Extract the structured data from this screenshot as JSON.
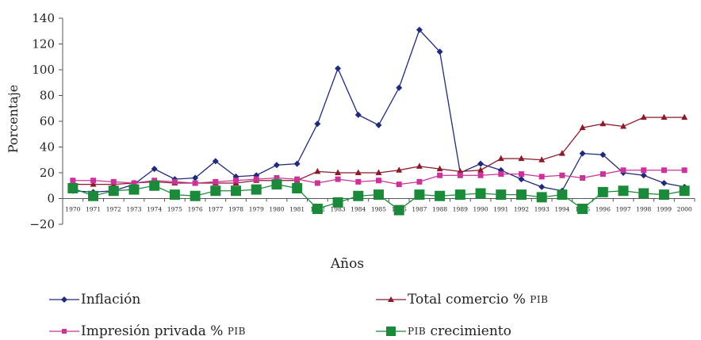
{
  "chart_data": {
    "type": "line",
    "xlabel": "Años",
    "ylabel": "Porcentaje",
    "ylim": [
      -20,
      140
    ],
    "yticks": [
      -20,
      0,
      20,
      40,
      60,
      80,
      100,
      120,
      140
    ],
    "ytick_labels": [
      "−20",
      "0",
      "20",
      "40",
      "60",
      "80",
      "100",
      "120",
      "140"
    ],
    "categories": [
      "1970",
      "1971",
      "1972",
      "1973",
      "1974",
      "1975",
      "1976",
      "1977",
      "1978",
      "1979",
      "1980",
      "1981",
      "1982",
      "1983",
      "1984",
      "1985",
      "1986",
      "1987",
      "1988",
      "1989",
      "1990",
      "1991",
      "1992",
      "1993",
      "1994",
      "1995",
      "1996",
      "1997",
      "1998",
      "1999",
      "2000"
    ],
    "series": [
      {
        "name": "Inflación",
        "color": "#1f2a7a",
        "marker": "diamond",
        "values": [
          6,
          5,
          6,
          11,
          23,
          15,
          16,
          29,
          17,
          18,
          26,
          27,
          58,
          101,
          65,
          57,
          86,
          131,
          114,
          20,
          27,
          22,
          15,
          9,
          6,
          35,
          34,
          20,
          18,
          12,
          9
        ]
      },
      {
        "name": "Total comercio % PIB",
        "color": "#8b1a2b",
        "marker": "triangle",
        "values": [
          11,
          11,
          11,
          12,
          13,
          12,
          12,
          12,
          12,
          14,
          14,
          14,
          21,
          20,
          20,
          20,
          22,
          25,
          23,
          21,
          22,
          31,
          31,
          30,
          35,
          55,
          58,
          56,
          63,
          63,
          63
        ]
      },
      {
        "name": "Impresión privada % PIB",
        "color": "#cc3399",
        "marker": "square",
        "values": [
          14,
          14,
          13,
          12,
          14,
          13,
          12,
          13,
          14,
          15,
          16,
          15,
          12,
          15,
          13,
          14,
          11,
          13,
          18,
          18,
          18,
          19,
          19,
          17,
          18,
          16,
          19,
          22,
          22,
          22,
          22
        ]
      },
      {
        "name": "PIB crecimiento",
        "color": "#1a8a3a",
        "marker": "bigsquare",
        "values": [
          8,
          2,
          6,
          7,
          10,
          3,
          2,
          6,
          6,
          7,
          11,
          8,
          -8,
          -3,
          2,
          3,
          -9,
          3,
          2,
          3,
          4,
          3,
          3,
          1,
          3,
          -8,
          5,
          6,
          4,
          3,
          6
        ]
      }
    ]
  },
  "legend": [
    {
      "main": "Inflación",
      "suffix": ""
    },
    {
      "main": "Total comercio % ",
      "suffix": "PIB"
    },
    {
      "main": "Impresión privada % ",
      "suffix": "PIB"
    },
    {
      "main": "",
      "suffix": "PIB",
      "after": " crecimiento"
    }
  ]
}
